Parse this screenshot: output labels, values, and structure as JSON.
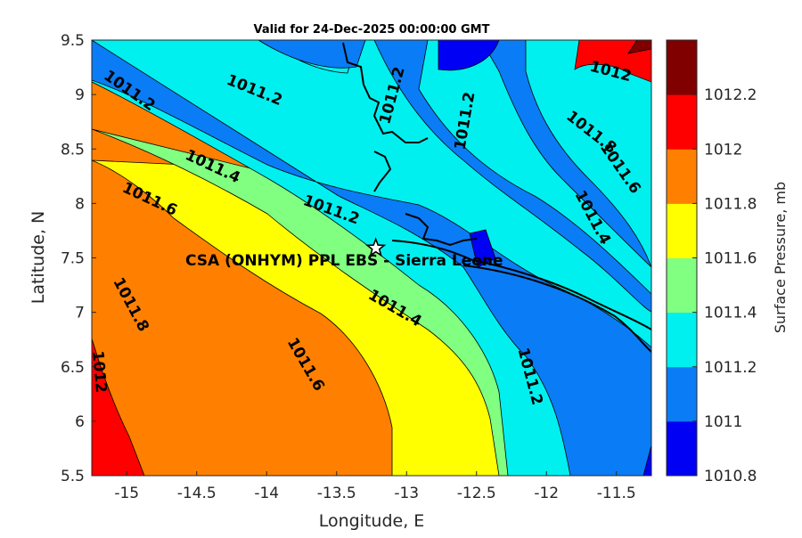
{
  "title": "Valid for 24-Dec-2025 00:00:00 GMT",
  "map": {
    "xlabel": "Longitude, E",
    "ylabel": "Latitude, N",
    "xlim": [
      -15.25,
      -11.25
    ],
    "ylim": [
      5.5,
      9.5
    ],
    "xticks": [
      "-15",
      "-14.5",
      "-14",
      "-13.5",
      "-13",
      "-12.5",
      "-12",
      "-11.5"
    ],
    "yticks": [
      "5.5",
      "6",
      "6.5",
      "7",
      "7.5",
      "8",
      "8.5",
      "9",
      "9.5"
    ],
    "site": {
      "label": "CSA (ONHYM) PPL EBS  - Sierra Leone",
      "lon": -13.22,
      "lat": 7.59,
      "marker": "star-icon"
    },
    "contour_labels": [
      {
        "text": "1011.2",
        "lon": -15.0,
        "lat": 9.0
      },
      {
        "text": "1011.2",
        "lon": -14.1,
        "lat": 9.0
      },
      {
        "text": "1011.2",
        "lon": -13.07,
        "lat": 8.98
      },
      {
        "text": "1011.2",
        "lon": -12.55,
        "lat": 8.75
      },
      {
        "text": "1011.2",
        "lon": -13.55,
        "lat": 7.9
      },
      {
        "text": "1011.2",
        "lon": -12.15,
        "lat": 6.4
      },
      {
        "text": "1011.4",
        "lon": -14.4,
        "lat": 8.3
      },
      {
        "text": "1011.4",
        "lon": -13.1,
        "lat": 7.0
      },
      {
        "text": "1011.4",
        "lon": -11.7,
        "lat": 7.85
      },
      {
        "text": "1011.6",
        "lon": -14.85,
        "lat": 8.0
      },
      {
        "text": "1011.6",
        "lon": -13.75,
        "lat": 6.5
      },
      {
        "text": "1011.6",
        "lon": -11.5,
        "lat": 8.3
      },
      {
        "text": "1011.8",
        "lon": -15.0,
        "lat": 7.05
      },
      {
        "text": "1011.8",
        "lon": -11.7,
        "lat": 8.62
      },
      {
        "text": "1012",
        "lon": -15.23,
        "lat": 6.45
      },
      {
        "text": "1012",
        "lon": -11.55,
        "lat": 9.17
      }
    ]
  },
  "colorbar": {
    "label": "Surface Pressure, mb",
    "levels": [
      1010.8,
      1011,
      1011.2,
      1011.4,
      1011.6,
      1011.8,
      1012,
      1012.2
    ],
    "tick_labels": [
      "1010.8",
      "1011",
      "1011.2",
      "1011.4",
      "1011.6",
      "1011.8",
      "1012",
      "1012.2"
    ],
    "colors": [
      "#0000f5",
      "#0a7cf5",
      "#00f0f0",
      "#80ff80",
      "#ffff00",
      "#ff8000",
      "#ff0000",
      "#800000"
    ]
  }
}
